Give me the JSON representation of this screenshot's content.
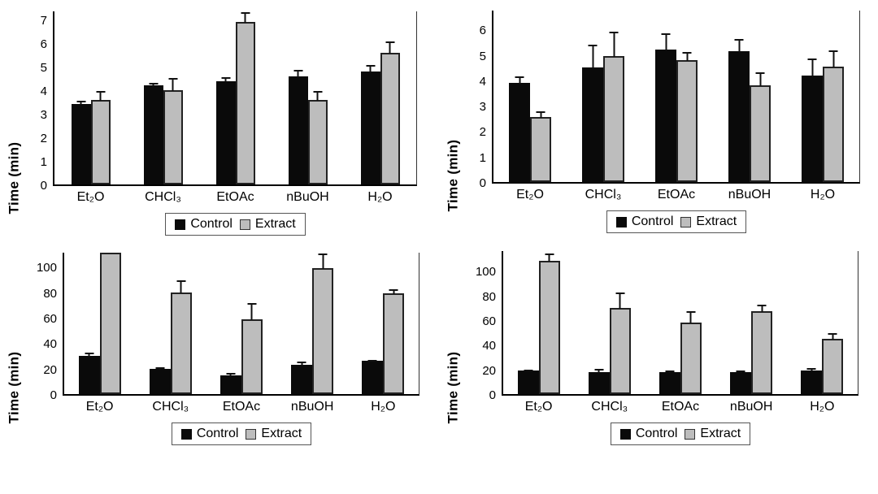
{
  "figure": {
    "description": "Four bar charts comparing Control vs Extract times across five solvents",
    "background": "#ffffff"
  },
  "colors": {
    "control": "#0a0a0a",
    "extract": "#bdbdbd",
    "bar_border": "#222222",
    "axis": "#000000",
    "error_bar": "#111111",
    "legend_border": "#555555"
  },
  "chart_data": [
    {
      "position": "top-left",
      "type": "bar",
      "title": "",
      "xlabel": "",
      "ylabel": "Time (min)",
      "categories": [
        "Et₂O",
        "CHCl₃",
        "EtOAc",
        "nBuOH",
        "H₂O"
      ],
      "yticks": [
        0,
        1,
        2,
        3,
        4,
        5,
        6,
        7
      ],
      "ylim": [
        0,
        7.35
      ],
      "grid": false,
      "legend_position": "bottom",
      "error_bars": "upper",
      "series": [
        {
          "name": "Control",
          "values": [
            3.4,
            4.2,
            4.4,
            4.6,
            4.8
          ],
          "errors": [
            0.2,
            0.15,
            0.2,
            0.3,
            0.3
          ]
        },
        {
          "name": "Extract",
          "values": [
            3.6,
            4.0,
            6.9,
            3.6,
            5.6
          ],
          "errors": [
            0.4,
            0.55,
            0.45,
            0.4,
            0.5
          ]
        }
      ]
    },
    {
      "position": "top-right",
      "type": "bar",
      "title": "",
      "xlabel": "",
      "ylabel": "Time (min)",
      "categories": [
        "Et₂O",
        "CHCl₃",
        "EtOAc",
        "nBuOH",
        "H₂O"
      ],
      "yticks": [
        0,
        1,
        2,
        3,
        4,
        5,
        6
      ],
      "ylim": [
        0,
        6.75
      ],
      "grid": false,
      "legend_position": "bottom",
      "error_bars": "upper",
      "series": [
        {
          "name": "Control",
          "values": [
            3.9,
            4.5,
            5.2,
            5.15,
            4.2
          ],
          "errors": [
            0.3,
            0.95,
            0.7,
            0.5,
            0.7
          ]
        },
        {
          "name": "Extract",
          "values": [
            2.55,
            4.95,
            4.8,
            3.8,
            4.55
          ],
          "errors": [
            0.25,
            1.0,
            0.35,
            0.55,
            0.65
          ]
        }
      ]
    },
    {
      "position": "bottom-left",
      "type": "bar",
      "title": "",
      "xlabel": "",
      "ylabel": "Time (min)",
      "categories": [
        "Et₂O",
        "CHCl₃",
        "EtOAc",
        "nBuOH",
        "H₂O"
      ],
      "yticks": [
        0,
        20,
        40,
        60,
        80,
        100
      ],
      "ylim": [
        0,
        111
      ],
      "grid": false,
      "legend_position": "bottom",
      "error_bars": "upper",
      "clipped_note": "Et2O Extract bar exceeds axis maximum (clipped at plot top)",
      "series": [
        {
          "name": "Control",
          "values": [
            30,
            20,
            15,
            23,
            26
          ],
          "errors": [
            3,
            2,
            2,
            3,
            1.5
          ]
        },
        {
          "name": "Extract",
          "values": [
            111,
            80,
            59,
            99,
            79
          ],
          "errors": [
            null,
            10,
            13,
            12,
            4
          ]
        }
      ]
    },
    {
      "position": "bottom-right",
      "type": "bar",
      "title": "",
      "xlabel": "",
      "ylabel": "Time (min)",
      "categories": [
        "Et₂O",
        "CHCl₃",
        "EtOAc",
        "nBuOH",
        "H₂O"
      ],
      "yticks": [
        0,
        20,
        40,
        60,
        80,
        100
      ],
      "ylim": [
        0,
        116
      ],
      "grid": false,
      "legend_position": "bottom",
      "error_bars": "upper",
      "series": [
        {
          "name": "Control",
          "values": [
            19,
            18,
            18,
            18,
            19
          ],
          "errors": [
            1.5,
            3,
            1.5,
            2,
            3
          ]
        },
        {
          "name": "Extract",
          "values": [
            108,
            70,
            58,
            67,
            45
          ],
          "errors": [
            7,
            13,
            10,
            6,
            5
          ]
        }
      ]
    }
  ]
}
